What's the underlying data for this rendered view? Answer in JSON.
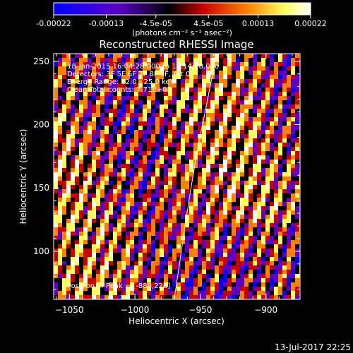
{
  "colorbar": {
    "tick_labels": [
      "-0.00022",
      "-0.00013",
      "-4.5e-05",
      "4.5e-05",
      "0.00013",
      "0.00022"
    ],
    "tick_values": [
      -0.00022,
      -0.00013,
      -4.5e-05,
      4.5e-05,
      0.00013,
      0.00022
    ],
    "range": [
      -0.00022,
      0.00022
    ],
    "units": "(photons cm⁻² s⁻¹ asec⁻²)",
    "colors": [
      "#0000ff",
      "#5a00c8",
      "#000000",
      "#c80000",
      "#ff8000",
      "#ffff60",
      "#ffffff"
    ]
  },
  "chart_data": {
    "type": "heatmap",
    "title": "Reconstructed RHESSI Image",
    "xlabel": "Heliocentric X (arcsec)",
    "ylabel": "Heliocentric Y (arcsec)",
    "xlim": [
      -1062,
      -874
    ],
    "ylim": [
      62,
      256
    ],
    "x_ticks": [
      -1050,
      -1000,
      -950,
      -900
    ],
    "x_tick_labels": [
      "−1050",
      "−1000",
      "−950",
      "−900"
    ],
    "y_ticks": [
      100,
      150,
      200,
      250
    ],
    "y_tick_labels": [
      "100",
      "150",
      "200",
      "250"
    ],
    "limb_curve": {
      "x": [
        -970,
        -966,
        -962,
        -958,
        -954,
        -950,
        -946,
        -943,
        -940,
        -938
      ],
      "y": [
        62,
        90,
        118,
        145,
        170,
        192,
        212,
        228,
        243,
        256
      ]
    },
    "peak": {
      "x": -889,
      "y": 226
    },
    "annotations": [
      "18-Jan-2015 16:04:28.000 to 16:14:28.000",
      "Detectors: 3F 5F 6F 7F 8F 9F, Att 0",
      "Energy Range: 12.0 - 25.0 keV",
      "Clean     Total counts: 7.71E+03"
    ],
    "peak_label": "Position of Peak = [-889,226]"
  },
  "footer": {
    "timestamp": "13-Jul-2017 22:25"
  }
}
